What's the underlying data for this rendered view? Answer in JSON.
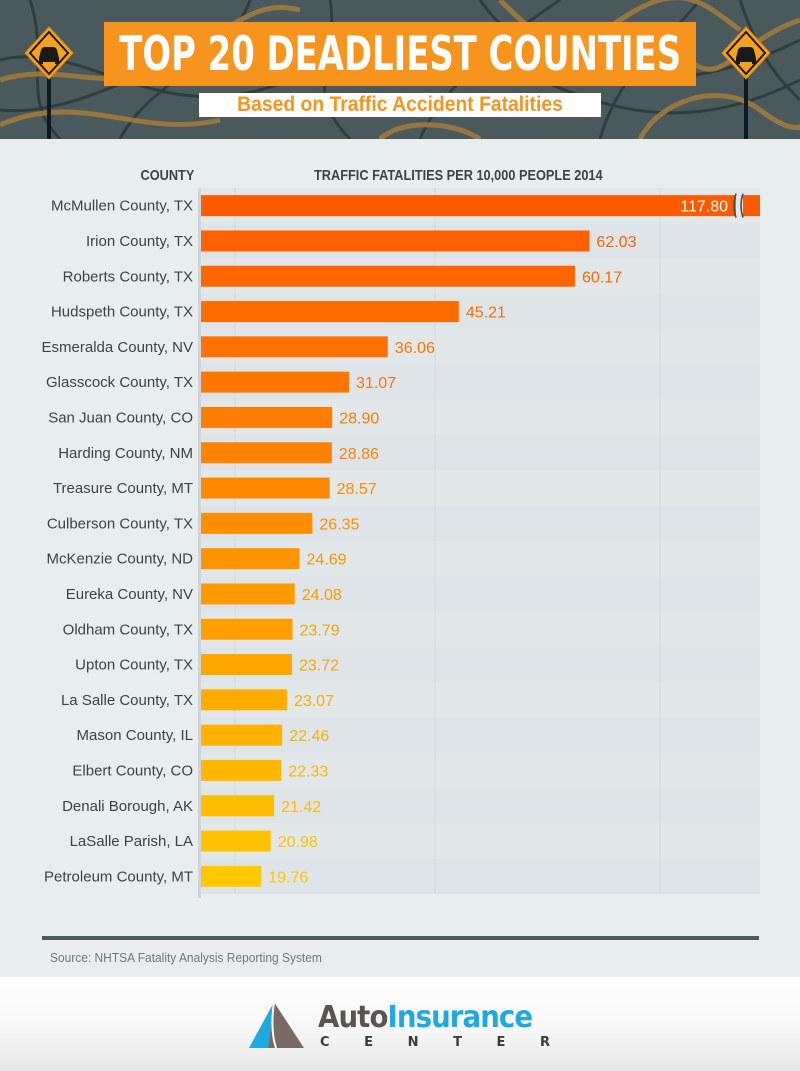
{
  "header": {
    "title": "TOP 20 DEADLIEST COUNTIES",
    "subtitle": "Based on Traffic Accident Fatalities",
    "sign_icon": "car-warning-sign-icon"
  },
  "colors": {
    "header_bg": "#4a5a5c",
    "title_bg": "#f7941d",
    "bar_top": "#ff5a00",
    "bar_bottom": "#ffc800",
    "text_dark": "#3d4446"
  },
  "chart_data": {
    "type": "bar",
    "orientation": "horizontal",
    "title": "Top 20 Deadliest Counties",
    "xlabel": "TRAFFIC FATALITIES PER 10,000 PEOPLE 2014",
    "ylabel": "COUNTY",
    "grid": true,
    "axis_break": {
      "category": "McMullen County, TX",
      "note": "bar truncated with break marks"
    },
    "categories": [
      "McMullen County, TX",
      "Irion County, TX",
      "Roberts County, TX",
      "Hudspeth County, TX",
      "Esmeralda County, NV",
      "Glasscock County, TX",
      "San Juan County, CO",
      "Harding County, NM",
      "Treasure County, MT",
      "Culberson County, TX",
      "McKenzie County, ND",
      "Eureka County, NV",
      "Oldham County, TX",
      "Upton County, TX",
      "La Salle County, TX",
      "Mason County, IL",
      "Elbert County, CO",
      "Denali Borough, AK",
      "LaSalle Parish, LA",
      "Petroleum County, MT"
    ],
    "values": [
      117.8,
      62.03,
      60.17,
      45.21,
      36.06,
      31.07,
      28.9,
      28.86,
      28.57,
      26.35,
      24.69,
      24.08,
      23.79,
      23.72,
      23.07,
      22.46,
      22.33,
      21.42,
      20.98,
      19.76
    ],
    "value_labels": [
      "117.80",
      "62.03",
      "60.17",
      "45.21",
      "36.06",
      "31.07",
      "28.90",
      "28.86",
      "28.57",
      "26.35",
      "24.69",
      "24.08",
      "23.79",
      "23.72",
      "23.07",
      "22.46",
      "22.33",
      "21.42",
      "20.98",
      "19.76"
    ],
    "xlim": [
      12,
      84
    ]
  },
  "source": "Source: NHTSA Fatality Analysis Reporting System",
  "footer": {
    "logo_word_1": "Auto",
    "logo_word_2": "Insurance",
    "logo_sub": [
      "C",
      "E",
      "N",
      "T",
      "E",
      "R"
    ],
    "logo_icon": "mountain-logo-icon"
  }
}
